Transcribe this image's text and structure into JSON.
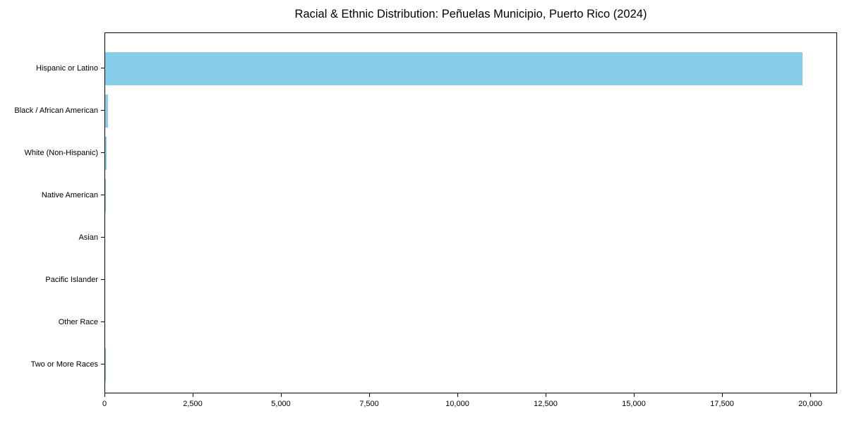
{
  "chart_data": {
    "type": "bar",
    "orientation": "horizontal",
    "title": "Racial & Ethnic Distribution: Peñuelas Municipio, Puerto Rico (2024)",
    "categories": [
      "Hispanic or Latino",
      "Black / African American",
      "White (Non-Hispanic)",
      "Native American",
      "Asian",
      "Pacific Islander",
      "Other Race",
      "Two or More Races"
    ],
    "values": [
      19750,
      80,
      35,
      10,
      0,
      0,
      0,
      15
    ],
    "xlabel": "",
    "ylabel": "",
    "xlim": [
      0,
      20760
    ],
    "x_ticks": [
      0,
      2500,
      5000,
      7500,
      10000,
      12500,
      15000,
      17500,
      20000
    ],
    "x_tick_labels": [
      "0",
      "2,500",
      "5,000",
      "7,500",
      "10,000",
      "12,500",
      "15,000",
      "17,500",
      "20,000"
    ],
    "bar_color": "#87CEEB",
    "axis_color": "#000000",
    "background_color": "#ffffff",
    "grid": false,
    "legend": null
  }
}
